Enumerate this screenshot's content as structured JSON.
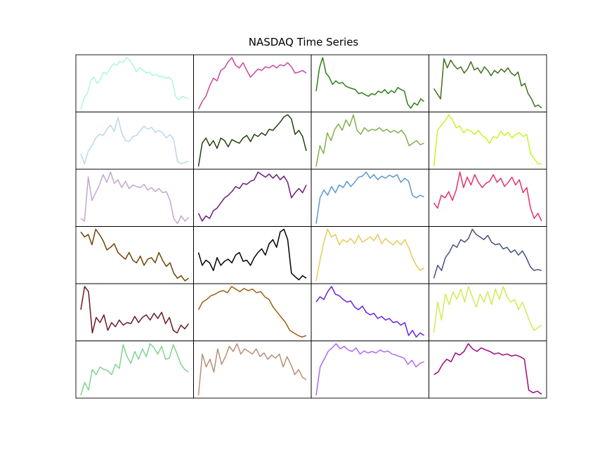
{
  "chart_data": {
    "type": "line",
    "title": "NASDAQ Time Series",
    "xlabel": "",
    "ylabel": "",
    "rows": 6,
    "cols": 4,
    "axes_ticks": false,
    "grid": false,
    "panels": [
      {
        "color": "#aef5e0",
        "values": [
          0.0,
          0.22,
          0.3,
          0.55,
          0.62,
          0.5,
          0.58,
          0.72,
          0.68,
          0.8,
          0.88,
          0.85,
          0.93,
          0.9,
          1.0,
          0.95,
          0.85,
          0.72,
          0.8,
          0.76,
          0.7,
          0.72,
          0.65,
          0.68,
          0.63,
          0.64,
          0.6,
          0.62,
          0.55,
          0.25,
          0.18,
          0.25,
          0.22,
          0.2
        ]
      },
      {
        "color": "#c8479a",
        "values": [
          0.0,
          0.15,
          0.25,
          0.45,
          0.6,
          0.55,
          0.75,
          0.8,
          0.92,
          1.0,
          0.85,
          0.8,
          0.9,
          0.75,
          0.62,
          0.7,
          0.78,
          0.75,
          0.82,
          0.8,
          0.85,
          0.8,
          0.86,
          0.84,
          0.9,
          0.82,
          0.7,
          0.72,
          0.75,
          0.7
        ]
      },
      {
        "color": "#2e7d1a",
        "values": [
          0.35,
          0.8,
          1.0,
          0.7,
          0.62,
          0.48,
          0.55,
          0.5,
          0.52,
          0.45,
          0.42,
          0.4,
          0.38,
          0.3,
          0.32,
          0.28,
          0.25,
          0.3,
          0.28,
          0.35,
          0.32,
          0.38,
          0.3,
          0.36,
          0.32,
          0.42,
          0.38,
          0.35,
          0.1,
          0.02,
          0.12,
          0.08,
          0.2,
          0.15
        ]
      },
      {
        "color": "#3f6f1f",
        "values": [
          0.4,
          0.3,
          0.2,
          0.98,
          0.8,
          0.95,
          0.85,
          0.78,
          0.82,
          0.7,
          0.78,
          0.92,
          0.76,
          0.8,
          0.7,
          0.82,
          0.75,
          0.65,
          0.75,
          0.7,
          0.78,
          0.72,
          0.8,
          0.7,
          0.65,
          0.72,
          0.45,
          0.5,
          0.3,
          0.2,
          0.05,
          0.08,
          0.02
        ]
      },
      {
        "color": "#b9d9e4",
        "values": [
          0.25,
          0.05,
          0.3,
          0.4,
          0.55,
          0.62,
          0.6,
          0.72,
          0.8,
          0.68,
          0.95,
          0.65,
          0.5,
          0.48,
          0.58,
          0.6,
          0.7,
          0.78,
          0.72,
          0.76,
          0.66,
          0.7,
          0.65,
          0.55,
          0.62,
          0.52,
          0.1,
          0.05,
          0.08,
          0.1
        ]
      },
      {
        "color": "#24400e",
        "values": [
          0.0,
          0.45,
          0.55,
          0.4,
          0.5,
          0.35,
          0.55,
          0.5,
          0.38,
          0.52,
          0.48,
          0.45,
          0.55,
          0.6,
          0.48,
          0.62,
          0.58,
          0.65,
          0.6,
          0.72,
          0.7,
          0.78,
          0.86,
          0.96,
          1.0,
          0.92,
          0.62,
          0.7,
          0.58,
          0.3
        ]
      },
      {
        "color": "#7fb04c",
        "values": [
          0.0,
          0.4,
          0.25,
          0.65,
          0.5,
          0.72,
          0.82,
          0.7,
          0.9,
          0.78,
          1.0,
          0.7,
          0.62,
          0.75,
          0.68,
          0.72,
          0.7,
          0.75,
          0.68,
          0.72,
          0.66,
          0.7,
          0.65,
          0.7,
          0.6,
          0.4,
          0.45,
          0.5,
          0.42,
          0.45
        ]
      },
      {
        "color": "#c4f526",
        "values": [
          0.0,
          0.7,
          0.8,
          0.88,
          1.0,
          0.9,
          0.75,
          0.78,
          0.65,
          0.72,
          0.68,
          0.62,
          0.7,
          0.6,
          0.55,
          0.45,
          0.58,
          0.55,
          0.68,
          0.6,
          0.66,
          0.55,
          0.62,
          0.65,
          0.58,
          0.62,
          0.25,
          0.15,
          0.05,
          0.05
        ]
      },
      {
        "color": "#c3a7cf",
        "values": [
          0.1,
          0.05,
          0.9,
          0.45,
          0.6,
          0.75,
          0.95,
          0.8,
          1.0,
          0.78,
          0.85,
          0.7,
          0.82,
          0.68,
          0.75,
          0.72,
          0.7,
          0.76,
          0.65,
          0.7,
          0.62,
          0.68,
          0.6,
          0.62,
          0.45,
          0.1,
          0.0,
          0.15,
          0.05,
          0.12
        ]
      },
      {
        "color": "#6d1b7d",
        "values": [
          0.2,
          0.05,
          0.15,
          0.1,
          0.25,
          0.3,
          0.4,
          0.5,
          0.55,
          0.62,
          0.72,
          0.68,
          0.78,
          0.76,
          0.82,
          0.85,
          1.0,
          0.95,
          0.9,
          0.96,
          0.88,
          0.95,
          0.85,
          0.92,
          0.8,
          0.5,
          0.6,
          0.68,
          0.6,
          0.75
        ]
      },
      {
        "color": "#5b96cf",
        "values": [
          0.0,
          0.5,
          0.65,
          0.55,
          0.72,
          0.6,
          0.75,
          0.7,
          0.82,
          0.72,
          0.8,
          0.9,
          0.92,
          1.0,
          0.88,
          0.95,
          0.85,
          0.92,
          0.88,
          0.94,
          0.9,
          0.95,
          0.8,
          0.88,
          0.82,
          0.55,
          0.5,
          0.55,
          0.52
        ]
      },
      {
        "color": "#e8306a",
        "values": [
          0.4,
          0.3,
          0.55,
          0.5,
          0.62,
          0.45,
          0.65,
          1.0,
          0.7,
          0.9,
          0.75,
          0.95,
          0.8,
          0.7,
          0.78,
          0.82,
          0.95,
          0.8,
          0.88,
          0.72,
          0.8,
          0.9,
          0.75,
          0.85,
          0.6,
          0.7,
          0.3,
          0.1,
          0.2,
          0.05
        ]
      },
      {
        "color": "#6b4507",
        "values": [
          0.95,
          0.85,
          0.9,
          0.7,
          1.0,
          0.9,
          0.78,
          0.6,
          0.65,
          0.72,
          0.55,
          0.48,
          0.42,
          0.55,
          0.4,
          0.35,
          0.48,
          0.3,
          0.42,
          0.45,
          0.35,
          0.55,
          0.4,
          0.28,
          0.35,
          0.15,
          0.05,
          0.1,
          0.0,
          0.05
        ]
      },
      {
        "color": "#000000",
        "values": [
          0.55,
          0.3,
          0.4,
          0.35,
          0.2,
          0.45,
          0.3,
          0.38,
          0.42,
          0.35,
          0.5,
          0.55,
          0.38,
          0.4,
          0.3,
          0.45,
          0.55,
          0.62,
          0.5,
          0.72,
          0.8,
          0.65,
          0.95,
          1.0,
          0.8,
          0.15,
          0.08,
          0.02,
          0.1,
          0.05
        ]
      },
      {
        "color": "#e6ca5a",
        "values": [
          0.0,
          0.4,
          0.75,
          1.0,
          0.85,
          0.9,
          0.7,
          0.8,
          0.75,
          0.82,
          0.72,
          0.88,
          0.75,
          0.8,
          0.85,
          0.78,
          0.9,
          0.72,
          0.82,
          0.75,
          0.7,
          0.78,
          0.7,
          0.8,
          0.65,
          0.45,
          0.3,
          0.2,
          0.25
        ]
      },
      {
        "color": "#47507d",
        "values": [
          0.05,
          0.3,
          0.2,
          0.45,
          0.55,
          0.7,
          0.65,
          0.8,
          0.75,
          0.82,
          1.0,
          0.9,
          0.85,
          0.8,
          0.88,
          0.75,
          0.7,
          0.72,
          0.62,
          0.65,
          0.55,
          0.6,
          0.5,
          0.58,
          0.45,
          0.28,
          0.2,
          0.22,
          0.2
        ]
      },
      {
        "color": "#6b1a22",
        "values": [
          0.55,
          1.0,
          0.9,
          0.1,
          0.4,
          0.3,
          0.45,
          0.15,
          0.3,
          0.22,
          0.35,
          0.25,
          0.3,
          0.28,
          0.42,
          0.3,
          0.4,
          0.45,
          0.35,
          0.48,
          0.38,
          0.5,
          0.28,
          0.4,
          0.15,
          0.1,
          0.25,
          0.18,
          0.28
        ]
      },
      {
        "color": "#9c5f12",
        "values": [
          0.55,
          0.7,
          0.75,
          0.82,
          0.85,
          0.9,
          0.92,
          0.88,
          1.0,
          0.95,
          0.9,
          0.96,
          0.92,
          0.95,
          0.88,
          0.9,
          0.8,
          0.75,
          0.6,
          0.5,
          0.4,
          0.3,
          0.15,
          0.1,
          0.05,
          0.02,
          0.05
        ]
      },
      {
        "color": "#6a22e0",
        "values": [
          0.7,
          0.8,
          0.75,
          0.9,
          1.0,
          0.85,
          0.82,
          0.75,
          0.7,
          0.72,
          0.6,
          0.55,
          0.62,
          0.5,
          0.45,
          0.48,
          0.38,
          0.42,
          0.35,
          0.38,
          0.3,
          0.32,
          0.25,
          0.3,
          0.05,
          0.15,
          0.02,
          0.1,
          0.05
        ]
      },
      {
        "color": "#d4ea55",
        "values": [
          0.1,
          0.7,
          0.35,
          0.85,
          0.65,
          0.9,
          0.75,
          0.95,
          0.7,
          1.0,
          0.8,
          0.6,
          0.85,
          0.7,
          0.9,
          0.65,
          0.95,
          0.75,
          1.0,
          0.8,
          0.7,
          0.75,
          0.55,
          0.7,
          0.5,
          0.3,
          0.15,
          0.2,
          0.25
        ]
      },
      {
        "color": "#7fd48e",
        "values": [
          0.0,
          0.25,
          0.1,
          0.5,
          0.4,
          0.55,
          0.5,
          0.48,
          0.4,
          0.6,
          0.52,
          0.98,
          0.75,
          0.62,
          0.85,
          0.7,
          0.9,
          0.75,
          1.0,
          0.92,
          0.8,
          0.95,
          0.7,
          0.72,
          0.98,
          0.8,
          0.6,
          0.5,
          0.45
        ]
      },
      {
        "color": "#b88f78",
        "values": [
          0.0,
          0.8,
          0.55,
          0.7,
          0.45,
          0.9,
          0.6,
          0.75,
          0.95,
          0.85,
          1.0,
          0.8,
          0.9,
          0.85,
          0.8,
          0.9,
          0.75,
          0.82,
          0.7,
          0.78,
          0.72,
          0.8,
          0.55,
          0.75,
          0.6,
          0.4,
          0.5,
          0.35,
          0.3
        ]
      },
      {
        "color": "#ad6af0",
        "values": [
          0.0,
          0.55,
          0.7,
          0.85,
          0.92,
          1.0,
          0.9,
          0.95,
          0.88,
          0.85,
          0.92,
          0.8,
          0.86,
          0.82,
          0.85,
          0.82,
          0.88,
          0.84,
          0.86,
          0.8,
          0.78,
          0.75,
          0.72,
          0.6,
          0.68,
          0.55,
          0.62,
          0.65
        ]
      },
      {
        "color": "#a1087e",
        "values": [
          0.4,
          0.45,
          0.6,
          0.7,
          0.65,
          0.82,
          0.78,
          0.85,
          1.0,
          0.9,
          0.85,
          0.92,
          0.88,
          0.85,
          0.8,
          0.82,
          0.78,
          0.8,
          0.76,
          0.78,
          0.75,
          0.7,
          0.1,
          0.05,
          0.08,
          0.02
        ]
      }
    ]
  }
}
